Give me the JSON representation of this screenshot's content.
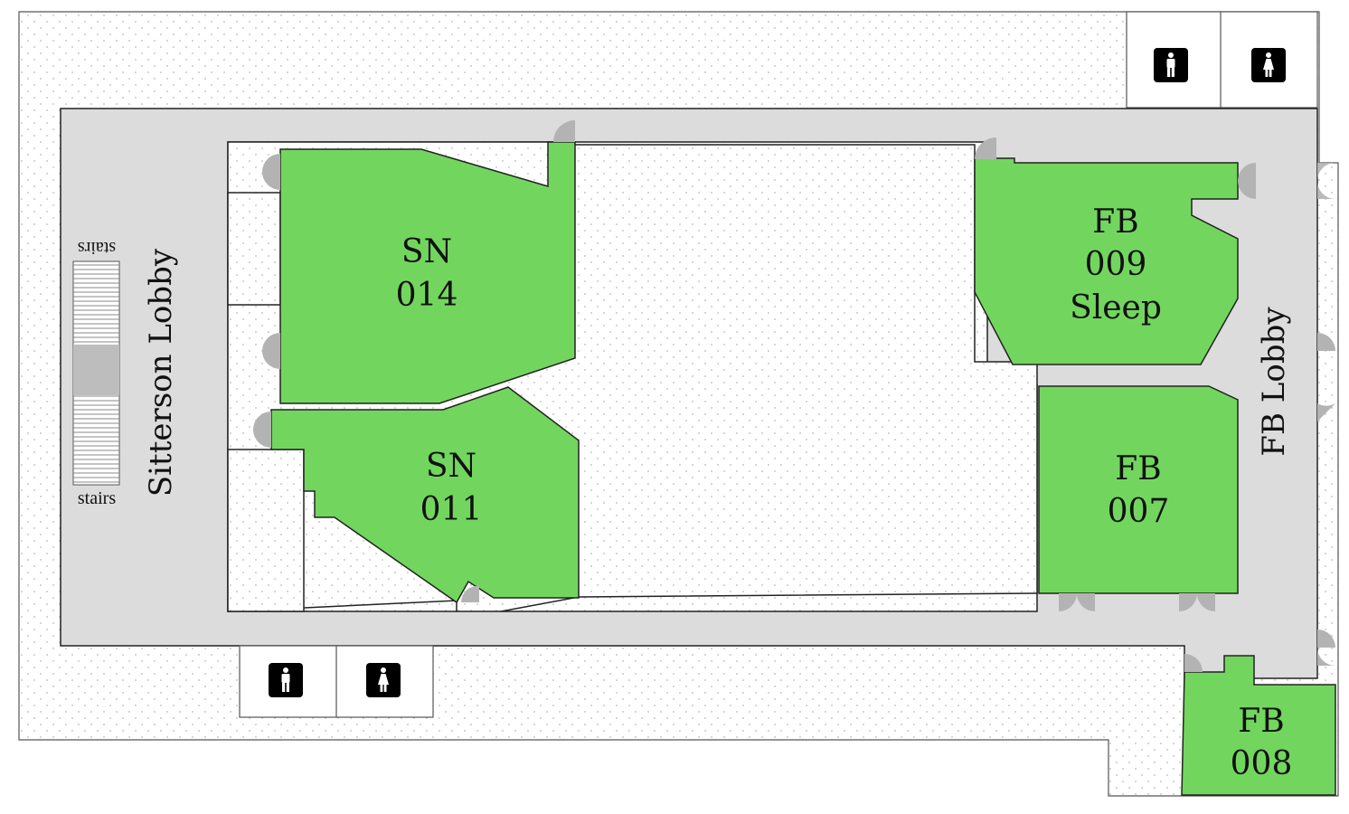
{
  "colors": {
    "room": "#72d65e",
    "corridor": "#dcdcdc",
    "outside": "#ffffff",
    "dots": "#b9b9b9",
    "wall": "#222222",
    "door": "#b3b3b3",
    "stair_landing": "#bdbdbd",
    "restroom_icon_bg": "#000000"
  },
  "lobbies": {
    "sitterson": "Sitterson Lobby",
    "fb": "FB Lobby"
  },
  "stairs": {
    "top_label": "stairs",
    "bottom_label": "stairs"
  },
  "rooms": [
    {
      "id": "sn-014",
      "line1": "SN",
      "line2": "014",
      "line3": ""
    },
    {
      "id": "sn-011",
      "line1": "SN",
      "line2": "011",
      "line3": ""
    },
    {
      "id": "fb-009",
      "line1": "FB",
      "line2": "009",
      "line3": "Sleep"
    },
    {
      "id": "fb-007",
      "line1": "FB",
      "line2": "007",
      "line3": ""
    },
    {
      "id": "fb-008",
      "line1": "FB",
      "line2": "008",
      "line3": ""
    }
  ],
  "restrooms": [
    {
      "icon": "mens-restroom-icon"
    },
    {
      "icon": "womens-restroom-icon"
    },
    {
      "icon": "mens-restroom-icon"
    },
    {
      "icon": "womens-restroom-icon"
    }
  ]
}
